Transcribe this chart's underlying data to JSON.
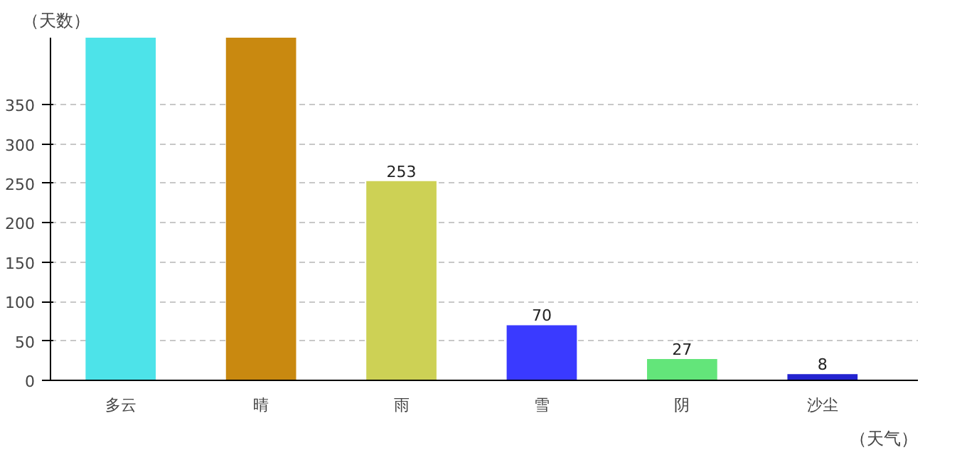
{
  "chart_data": {
    "type": "bar",
    "xlabel": "（天气）",
    "ylabel": "（天数）",
    "categories": [
      "多云",
      "晴",
      "雨",
      "雪",
      "阴",
      "沙尘"
    ],
    "values": [
      435,
      435,
      253,
      70,
      27,
      8
    ],
    "colors": [
      "#4de3e9",
      "#c98910",
      "#cdd155",
      "#3a3aff",
      "#63e57a",
      "#2323d0"
    ],
    "value_labels": [
      null,
      null,
      "253",
      "70",
      "27",
      "8"
    ],
    "ylim": [
      0,
      435
    ],
    "yticks": [
      0,
      50,
      100,
      150,
      200,
      250,
      300,
      350
    ],
    "grid": "y"
  }
}
